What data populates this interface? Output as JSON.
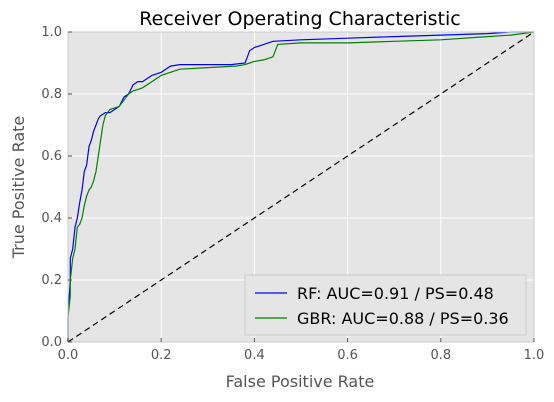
{
  "chart_data": {
    "type": "line",
    "title": "Receiver Operating Characteristic",
    "xlabel": "False Positive Rate",
    "ylabel": "True Positive Rate",
    "xlim": [
      0.0,
      1.0
    ],
    "ylim": [
      0.0,
      1.0
    ],
    "xticks": [
      "0.0",
      "0.2",
      "0.4",
      "0.6",
      "0.8",
      "1.0"
    ],
    "yticks": [
      "0.0",
      "0.2",
      "0.4",
      "0.6",
      "0.8",
      "1.0"
    ],
    "grid": true,
    "legend_position": "lower-right",
    "background": "#e5e5e5",
    "series": [
      {
        "name": "RF: AUC=0.91 / PS=0.48",
        "color": "#0000ff",
        "x": [
          0.0,
          0.0,
          0.005,
          0.005,
          0.01,
          0.015,
          0.02,
          0.025,
          0.03,
          0.035,
          0.04,
          0.045,
          0.05,
          0.055,
          0.06,
          0.065,
          0.07,
          0.075,
          0.08,
          0.09,
          0.1,
          0.11,
          0.12,
          0.13,
          0.14,
          0.15,
          0.16,
          0.17,
          0.18,
          0.2,
          0.22,
          0.24,
          0.3,
          0.35,
          0.38,
          0.39,
          0.4,
          0.42,
          0.44,
          0.5,
          0.6,
          0.7,
          0.8,
          0.9,
          0.95,
          1.0
        ],
        "y": [
          0.0,
          0.08,
          0.2,
          0.27,
          0.3,
          0.37,
          0.4,
          0.45,
          0.49,
          0.55,
          0.57,
          0.63,
          0.65,
          0.68,
          0.7,
          0.72,
          0.73,
          0.735,
          0.74,
          0.74,
          0.75,
          0.76,
          0.79,
          0.8,
          0.83,
          0.84,
          0.84,
          0.85,
          0.86,
          0.87,
          0.89,
          0.895,
          0.895,
          0.895,
          0.9,
          0.94,
          0.95,
          0.96,
          0.97,
          0.975,
          0.98,
          0.985,
          0.99,
          0.995,
          1.0,
          1.0
        ]
      },
      {
        "name": "GBR: AUC=0.88 / PS=0.36",
        "color": "#008000",
        "x": [
          0.0,
          0.0,
          0.005,
          0.005,
          0.01,
          0.015,
          0.02,
          0.025,
          0.03,
          0.035,
          0.04,
          0.045,
          0.05,
          0.055,
          0.06,
          0.065,
          0.07,
          0.075,
          0.08,
          0.09,
          0.1,
          0.11,
          0.12,
          0.13,
          0.14,
          0.15,
          0.16,
          0.18,
          0.2,
          0.22,
          0.24,
          0.3,
          0.36,
          0.38,
          0.39,
          0.4,
          0.42,
          0.44,
          0.45,
          0.5,
          0.6,
          0.7,
          0.8,
          0.9,
          0.95,
          1.0
        ],
        "y": [
          0.0,
          0.08,
          0.15,
          0.2,
          0.27,
          0.3,
          0.37,
          0.38,
          0.4,
          0.44,
          0.47,
          0.49,
          0.5,
          0.52,
          0.55,
          0.6,
          0.65,
          0.7,
          0.73,
          0.75,
          0.755,
          0.76,
          0.78,
          0.8,
          0.81,
          0.815,
          0.82,
          0.84,
          0.86,
          0.87,
          0.88,
          0.885,
          0.89,
          0.895,
          0.9,
          0.905,
          0.91,
          0.92,
          0.96,
          0.965,
          0.965,
          0.97,
          0.975,
          0.985,
          0.99,
          1.0
        ]
      }
    ],
    "reference_line": {
      "x": [
        0,
        1
      ],
      "y": [
        0,
        1
      ],
      "style": "dashed",
      "color": "#000000"
    }
  }
}
